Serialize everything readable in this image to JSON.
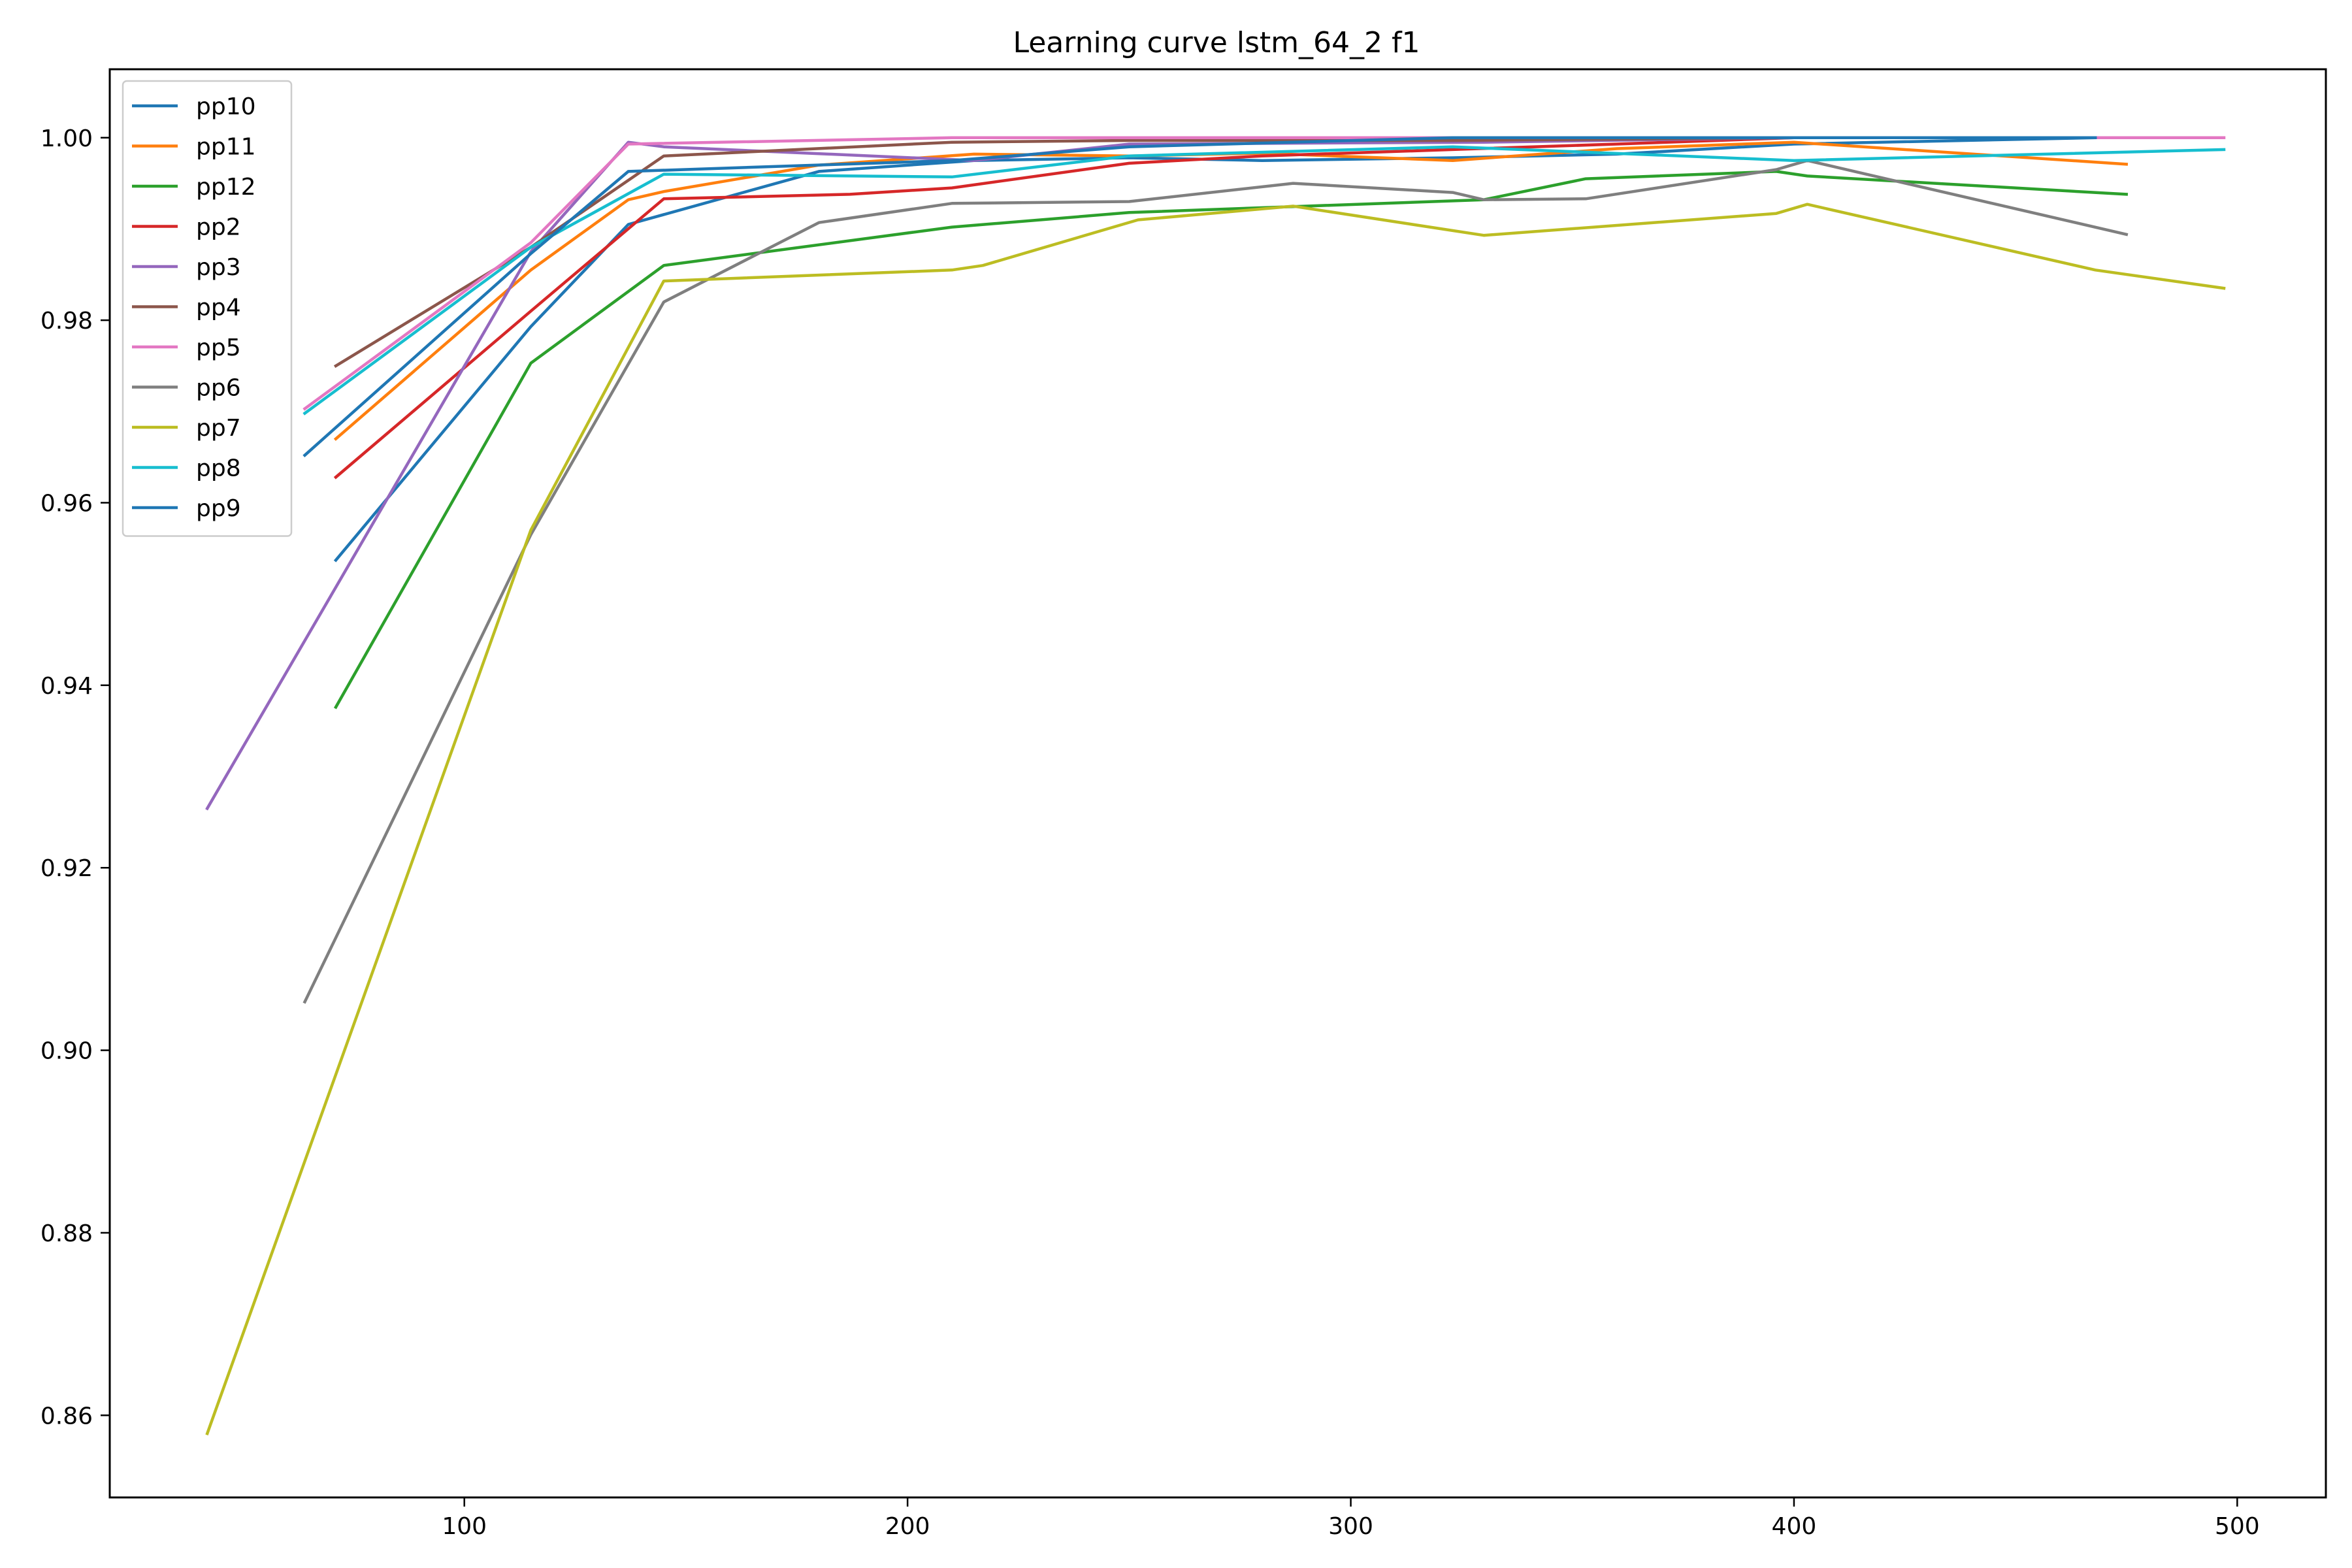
{
  "chart_data": {
    "type": "line",
    "title": "Learning curve lstm_64_2 f1",
    "xlabel": "",
    "ylabel": "",
    "xlim": [
      20,
      520
    ],
    "ylim": [
      0.851,
      1.0075
    ],
    "xticks": [
      100,
      200,
      300,
      400,
      500
    ],
    "xtick_labels": [
      "100",
      "200",
      "300",
      "400",
      "500"
    ],
    "yticks": [
      0.86,
      0.88,
      0.9,
      0.92,
      0.94,
      0.96,
      0.98,
      1.0
    ],
    "ytick_labels": [
      "0.86",
      "0.88",
      "0.90",
      "0.92",
      "0.94",
      "0.96",
      "0.98",
      "1.00"
    ],
    "grid": false,
    "legend_position": "top-left",
    "series": [
      {
        "name": "pp10",
        "color": "#1f77b4",
        "x": [
          71,
          115,
          137,
          180,
          215,
          250,
          280,
          323,
          360,
          400,
          468
        ],
        "y": [
          0.9537,
          0.9793,
          0.9905,
          0.9963,
          0.9975,
          0.9978,
          0.9975,
          0.9978,
          0.9982,
          0.9993,
          1.0
        ]
      },
      {
        "name": "pp11",
        "color": "#ff7f0e",
        "x": [
          71,
          115,
          137,
          145,
          180,
          215,
          250,
          280,
          323,
          360,
          400,
          475
        ],
        "y": [
          0.967,
          0.9855,
          0.9932,
          0.9941,
          0.997,
          0.9982,
          0.998,
          0.9983,
          0.9975,
          0.9988,
          0.9995,
          0.9971
        ]
      },
      {
        "name": "pp12",
        "color": "#2ca02c",
        "x": [
          71,
          115,
          145,
          210,
          250,
          290,
          330,
          353,
          396,
          403,
          475
        ],
        "y": [
          0.9376,
          0.9753,
          0.986,
          0.9902,
          0.9918,
          0.9925,
          0.9932,
          0.9955,
          0.9963,
          0.9958,
          0.9938
        ]
      },
      {
        "name": "pp2",
        "color": "#d62728",
        "x": [
          71,
          115,
          145,
          187,
          210,
          250,
          280,
          323,
          360,
          400,
          475
        ],
        "y": [
          0.9628,
          0.981,
          0.9933,
          0.9938,
          0.9945,
          0.9972,
          0.998,
          0.9987,
          0.9993,
          1.0,
          1.0
        ]
      },
      {
        "name": "pp3",
        "color": "#9467bd",
        "x": [
          42,
          115,
          137,
          145,
          215,
          250,
          330,
          400,
          475
        ],
        "y": [
          0.9265,
          0.9875,
          0.9995,
          0.999,
          0.9975,
          0.9993,
          0.9995,
          1.0,
          1.0
        ]
      },
      {
        "name": "pp4",
        "color": "#8c564b",
        "x": [
          71,
          115,
          145,
          210,
          250,
          323,
          400,
          475
        ],
        "y": [
          0.975,
          0.988,
          0.998,
          0.9995,
          0.9997,
          0.9997,
          1.0,
          1.0
        ]
      },
      {
        "name": "pp5",
        "color": "#e377c2",
        "x": [
          64,
          115,
          137,
          210,
          250,
          323,
          400,
          497
        ],
        "y": [
          0.9703,
          0.9885,
          0.9993,
          1.0,
          1.0,
          1.0,
          1.0,
          1.0
        ]
      },
      {
        "name": "pp6",
        "color": "#7f7f7f",
        "x": [
          64,
          115,
          145,
          180,
          210,
          250,
          287,
          323,
          330,
          353,
          396,
          403,
          475
        ],
        "y": [
          0.9053,
          0.9565,
          0.982,
          0.9907,
          0.9928,
          0.993,
          0.995,
          0.994,
          0.9932,
          0.9933,
          0.9965,
          0.9975,
          0.9894
        ]
      },
      {
        "name": "pp7",
        "color": "#bcbd22",
        "x": [
          42,
          115,
          145,
          210,
          217,
          252,
          287,
          330,
          396,
          403,
          468,
          497
        ],
        "y": [
          0.858,
          0.957,
          0.9843,
          0.9855,
          0.986,
          0.991,
          0.9925,
          0.9893,
          0.9917,
          0.9927,
          0.9855,
          0.9835
        ]
      },
      {
        "name": "pp8",
        "color": "#17becf",
        "x": [
          64,
          115,
          145,
          210,
          250,
          323,
          400,
          497
        ],
        "y": [
          0.9698,
          0.988,
          0.996,
          0.9957,
          0.998,
          0.999,
          0.9975,
          0.9987
        ]
      },
      {
        "name": "pp9",
        "color": "#1f77b4",
        "x": [
          64,
          115,
          137,
          210,
          250,
          323,
          400,
          468
        ],
        "y": [
          0.9652,
          0.9873,
          0.9963,
          0.9975,
          0.999,
          1.0,
          1.0,
          1.0
        ]
      }
    ]
  }
}
